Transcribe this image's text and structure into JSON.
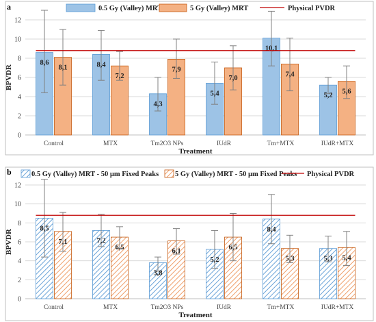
{
  "colors": {
    "blue": "#9dc3e6",
    "blue_edge": "#5b9bd5",
    "orange": "#f4b183",
    "orange_edge": "#c55a11",
    "pvdr_line": "#c00000",
    "grid": "#d9d9d9",
    "error_bar": "#808080"
  },
  "chart_data": [
    {
      "type": "bar",
      "panel_label": "a",
      "categories": [
        "Control",
        "MTX",
        "Tm2O3 NPs",
        "IUdR",
        "Tm+MTX",
        "IUdR+MTX"
      ],
      "xlabel": "Treatment",
      "ylabel": "BPVDR",
      "ylim": [
        0,
        12
      ],
      "yticks": [
        0,
        2,
        4,
        6,
        8,
        10,
        12
      ],
      "grid": true,
      "legend_position": "top",
      "series": [
        {
          "name": "0.5 Gy (Valley) MRT",
          "values": [
            8.6,
            8.4,
            4.3,
            5.4,
            10.1,
            5.2
          ],
          "labels": [
            "8,6",
            "8,4",
            "4,3",
            "5,4",
            "10,1",
            "5,2"
          ],
          "error_high": [
            13.0,
            10.9,
            6.0,
            7.6,
            12.9,
            6.0
          ],
          "error_low": [
            4.4,
            5.7,
            2.5,
            3.2,
            7.2,
            4.3
          ],
          "pattern": "solid",
          "color": "#9dc3e6"
        },
        {
          "name": "5 Gy (Valley) MRT",
          "values": [
            8.1,
            7.2,
            7.9,
            7.0,
            7.4,
            5.6
          ],
          "labels": [
            "8,1",
            "7,2",
            "7,9",
            "7,0",
            "7,4",
            "5,6"
          ],
          "error_high": [
            11.0,
            8.7,
            10.0,
            9.3,
            10.1,
            7.2
          ],
          "error_low": [
            5.2,
            5.7,
            5.9,
            4.7,
            4.6,
            3.8
          ],
          "pattern": "solid",
          "color": "#f4b183"
        }
      ],
      "reference_line": {
        "name": "Physical PVDR",
        "value": 8.8
      }
    },
    {
      "type": "bar",
      "panel_label": "b",
      "categories": [
        "Control",
        "MTX",
        "Tm2O3 NPs",
        "IUdR",
        "Tm+MTX",
        "IUdR+MTX"
      ],
      "xlabel": "Treatment",
      "ylabel": "BPVDR",
      "ylim": [
        0,
        12
      ],
      "yticks": [
        0,
        2,
        4,
        6,
        8,
        10,
        12
      ],
      "grid": true,
      "legend_position": "top",
      "series": [
        {
          "name": "0.5 Gy (Valley) MRT - 50 µm Fixed Peaks",
          "values": [
            8.5,
            7.2,
            3.8,
            5.2,
            8.4,
            5.3
          ],
          "labels": [
            "8,5",
            "7,2",
            "3,8",
            "5,2",
            "8,4",
            "5,3"
          ],
          "error_high": [
            12.6,
            8.9,
            4.4,
            7.2,
            11.0,
            6.6
          ],
          "error_low": [
            4.4,
            5.5,
            2.9,
            3.2,
            5.8,
            3.9
          ],
          "pattern": "hatched",
          "color": "#9dc3e6"
        },
        {
          "name": "5 Gy (Valley) MRT - 50 µm Fixed Peaks",
          "values": [
            7.1,
            6.5,
            6.1,
            6.5,
            5.3,
            5.4
          ],
          "labels": [
            "7,1",
            "6,5",
            "6,1",
            "6,5",
            "5,3",
            "5,4"
          ],
          "error_high": [
            9.1,
            7.6,
            7.4,
            9.0,
            6.7,
            7.1
          ],
          "error_low": [
            5.0,
            5.3,
            4.7,
            4.0,
            3.8,
            3.5
          ],
          "pattern": "hatched",
          "color": "#f4b183"
        }
      ],
      "reference_line": {
        "name": "Physical PVDR",
        "value": 8.8
      }
    }
  ]
}
